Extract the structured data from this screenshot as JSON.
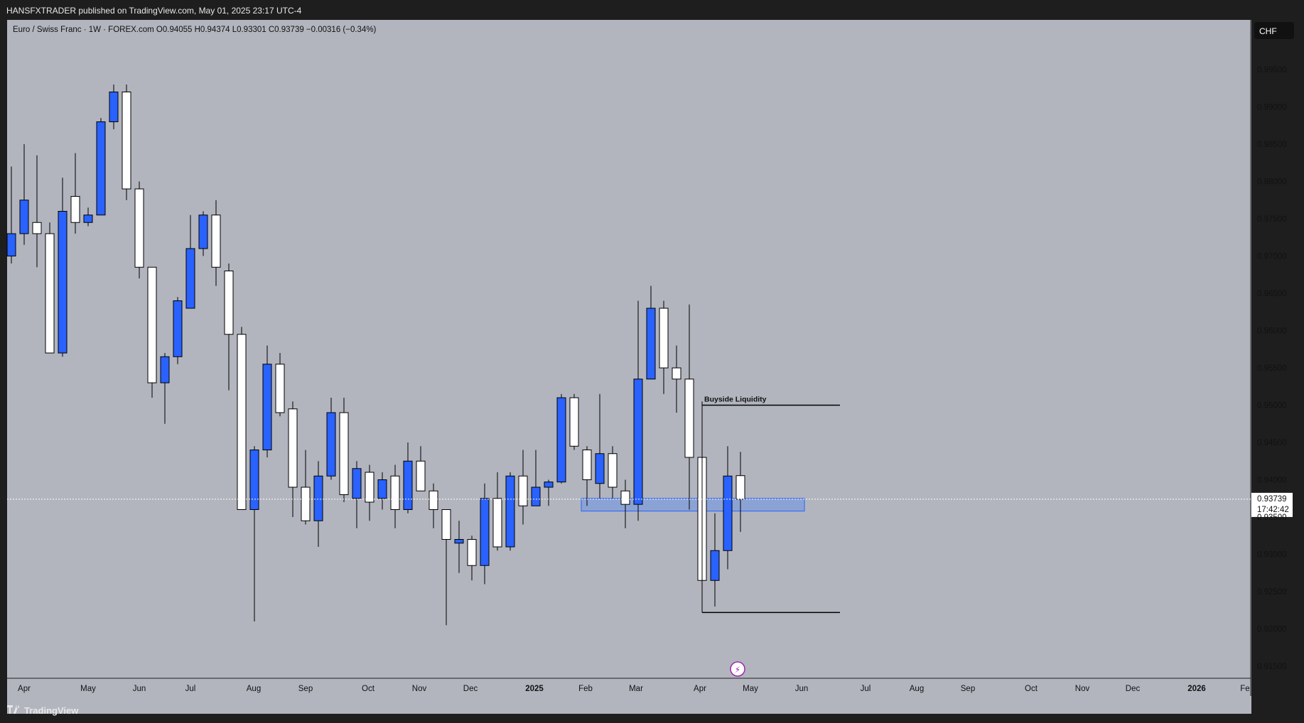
{
  "publisher": "HANSFXTRADER published on TradingView.com, May 01, 2025 23:17 UTC-4",
  "footer": {
    "logo": "TradingView",
    "icon": "tradingview-logo-icon"
  },
  "colors": {
    "background": "#b2b5be",
    "bullish": "#2962ff",
    "bearish": "#ffffff",
    "wick": "#000000",
    "zone": "#5b8def",
    "frame": "#1e1e1e"
  },
  "chart_data": {
    "type": "candlestick",
    "symbol_line": "Euro / Swiss Franc · 1W · FOREX.com  O0.94055  H0.94374  L0.93301  C0.93739  −0.00316 (−0.34%)",
    "currency": "CHF",
    "current_price": "0.93739",
    "countdown": "17:42:42",
    "ylim": [
      0.9125,
      1.0
    ],
    "y_ticks": [
      "0.99500",
      "0.99000",
      "0.98500",
      "0.98000",
      "0.97500",
      "0.97000",
      "0.96500",
      "0.96000",
      "0.95500",
      "0.95000",
      "0.94500",
      "0.94000",
      "0.93500",
      "0.93000",
      "0.92500",
      "0.92000",
      "0.91500"
    ],
    "x_ticks": [
      "Apr",
      "May",
      "Jun",
      "Jul",
      "Aug",
      "Sep",
      "Oct",
      "Nov",
      "Dec",
      "2025",
      "Feb",
      "Mar",
      "Apr",
      "May",
      "Jun",
      "Jul",
      "Aug",
      "Sep",
      "Oct",
      "Nov",
      "Dec",
      "2026",
      "Fe"
    ],
    "candles": [
      {
        "o": 0.97,
        "h": 0.982,
        "l": 0.969,
        "c": 0.973
      },
      {
        "o": 0.973,
        "h": 0.985,
        "l": 0.9715,
        "c": 0.9775
      },
      {
        "o": 0.9745,
        "h": 0.9835,
        "l": 0.9685,
        "c": 0.973
      },
      {
        "o": 0.973,
        "h": 0.9745,
        "l": 0.957,
        "c": 0.957
      },
      {
        "o": 0.957,
        "h": 0.9805,
        "l": 0.9565,
        "c": 0.976
      },
      {
        "o": 0.978,
        "h": 0.9838,
        "l": 0.973,
        "c": 0.9745
      },
      {
        "o": 0.9745,
        "h": 0.9765,
        "l": 0.974,
        "c": 0.9755
      },
      {
        "o": 0.9755,
        "h": 0.9885,
        "l": 0.9755,
        "c": 0.988
      },
      {
        "o": 0.988,
        "h": 0.993,
        "l": 0.987,
        "c": 0.992
      },
      {
        "o": 0.992,
        "h": 0.993,
        "l": 0.9775,
        "c": 0.979
      },
      {
        "o": 0.979,
        "h": 0.98,
        "l": 0.967,
        "c": 0.9685
      },
      {
        "o": 0.9685,
        "h": 0.9685,
        "l": 0.951,
        "c": 0.953
      },
      {
        "o": 0.953,
        "h": 0.957,
        "l": 0.9475,
        "c": 0.9565
      },
      {
        "o": 0.9565,
        "h": 0.9645,
        "l": 0.9555,
        "c": 0.964
      },
      {
        "o": 0.963,
        "h": 0.9755,
        "l": 0.963,
        "c": 0.971
      },
      {
        "o": 0.971,
        "h": 0.976,
        "l": 0.97,
        "c": 0.9755
      },
      {
        "o": 0.9755,
        "h": 0.9775,
        "l": 0.966,
        "c": 0.9685
      },
      {
        "o": 0.968,
        "h": 0.969,
        "l": 0.952,
        "c": 0.9595
      },
      {
        "o": 0.9595,
        "h": 0.9605,
        "l": 0.936,
        "c": 0.936
      },
      {
        "o": 0.936,
        "h": 0.9445,
        "l": 0.921,
        "c": 0.944
      },
      {
        "o": 0.944,
        "h": 0.958,
        "l": 0.943,
        "c": 0.9555
      },
      {
        "o": 0.9555,
        "h": 0.957,
        "l": 0.9485,
        "c": 0.949
      },
      {
        "o": 0.9495,
        "h": 0.9505,
        "l": 0.935,
        "c": 0.939
      },
      {
        "o": 0.939,
        "h": 0.944,
        "l": 0.934,
        "c": 0.9345
      },
      {
        "o": 0.9345,
        "h": 0.9425,
        "l": 0.931,
        "c": 0.9405
      },
      {
        "o": 0.9405,
        "h": 0.951,
        "l": 0.94,
        "c": 0.949
      },
      {
        "o": 0.949,
        "h": 0.951,
        "l": 0.937,
        "c": 0.938
      },
      {
        "o": 0.9375,
        "h": 0.9425,
        "l": 0.9335,
        "c": 0.9415
      },
      {
        "o": 0.941,
        "h": 0.942,
        "l": 0.9345,
        "c": 0.937
      },
      {
        "o": 0.9375,
        "h": 0.941,
        "l": 0.936,
        "c": 0.94
      },
      {
        "o": 0.9405,
        "h": 0.942,
        "l": 0.9335,
        "c": 0.936
      },
      {
        "o": 0.936,
        "h": 0.945,
        "l": 0.9355,
        "c": 0.9425
      },
      {
        "o": 0.9425,
        "h": 0.9445,
        "l": 0.9385,
        "c": 0.9385
      },
      {
        "o": 0.9385,
        "h": 0.9395,
        "l": 0.9335,
        "c": 0.936
      },
      {
        "o": 0.936,
        "h": 0.936,
        "l": 0.9205,
        "c": 0.932
      },
      {
        "o": 0.9315,
        "h": 0.9345,
        "l": 0.9275,
        "c": 0.932
      },
      {
        "o": 0.932,
        "h": 0.9325,
        "l": 0.9265,
        "c": 0.9285
      },
      {
        "o": 0.9285,
        "h": 0.9395,
        "l": 0.926,
        "c": 0.9375
      },
      {
        "o": 0.9375,
        "h": 0.941,
        "l": 0.9305,
        "c": 0.931
      },
      {
        "o": 0.931,
        "h": 0.941,
        "l": 0.9305,
        "c": 0.9405
      },
      {
        "o": 0.9405,
        "h": 0.944,
        "l": 0.934,
        "c": 0.9365
      },
      {
        "o": 0.9365,
        "h": 0.944,
        "l": 0.9365,
        "c": 0.939
      },
      {
        "o": 0.939,
        "h": 0.94,
        "l": 0.9365,
        "c": 0.9397
      },
      {
        "o": 0.9397,
        "h": 0.9515,
        "l": 0.9395,
        "c": 0.951
      },
      {
        "o": 0.951,
        "h": 0.9515,
        "l": 0.944,
        "c": 0.9445
      },
      {
        "o": 0.944,
        "h": 0.9445,
        "l": 0.9365,
        "c": 0.94
      },
      {
        "o": 0.9395,
        "h": 0.9515,
        "l": 0.9375,
        "c": 0.9435
      },
      {
        "o": 0.9435,
        "h": 0.9445,
        "l": 0.9375,
        "c": 0.939
      },
      {
        "o": 0.9385,
        "h": 0.94,
        "l": 0.9335,
        "c": 0.9367
      },
      {
        "o": 0.9367,
        "h": 0.964,
        "l": 0.9345,
        "c": 0.9535
      },
      {
        "o": 0.9535,
        "h": 0.966,
        "l": 0.9535,
        "c": 0.963
      },
      {
        "o": 0.963,
        "h": 0.964,
        "l": 0.9515,
        "c": 0.955
      },
      {
        "o": 0.955,
        "h": 0.958,
        "l": 0.949,
        "c": 0.9535
      },
      {
        "o": 0.9535,
        "h": 0.9635,
        "l": 0.936,
        "c": 0.943
      },
      {
        "o": 0.943,
        "h": 0.9505,
        "l": 0.9225,
        "c": 0.9265
      },
      {
        "o": 0.9265,
        "h": 0.9355,
        "l": 0.923,
        "c": 0.9305
      },
      {
        "o": 0.9305,
        "h": 0.9445,
        "l": 0.928,
        "c": 0.9405
      },
      {
        "o": 0.94055,
        "h": 0.94374,
        "l": 0.93301,
        "c": 0.93739
      }
    ],
    "annotations": [
      {
        "text": "Buyside Liquidity",
        "type": "level",
        "price": 0.95,
        "from_candle": 54,
        "to_candle": 62
      },
      {
        "text": "",
        "type": "level",
        "price": 0.9222,
        "from_candle": 54,
        "to_candle": 62
      },
      {
        "text": "",
        "type": "zone",
        "from_price": 0.9358,
        "to_price": 0.9375,
        "from_candle": 45,
        "to_candle": 62
      }
    ]
  }
}
